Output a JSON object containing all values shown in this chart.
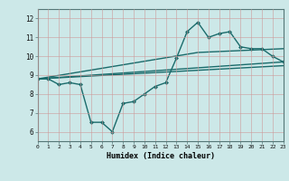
{
  "title": "",
  "xlabel": "Humidex (Indice chaleur)",
  "ylabel": "",
  "background_color": "#cce8e8",
  "line_color": "#1a6b6b",
  "xmin": 0,
  "xmax": 23,
  "ymin": 5.5,
  "ymax": 12.5,
  "yticks": [
    6,
    7,
    8,
    9,
    10,
    11,
    12
  ],
  "xticks": [
    0,
    1,
    2,
    3,
    4,
    5,
    6,
    7,
    8,
    9,
    10,
    11,
    12,
    13,
    14,
    15,
    16,
    17,
    18,
    19,
    20,
    21,
    22,
    23
  ],
  "line1_x": [
    0,
    1,
    2,
    3,
    4,
    5,
    6,
    7,
    8,
    9,
    10,
    11,
    12,
    13,
    14,
    15,
    16,
    17,
    18,
    19,
    20,
    21,
    22,
    23
  ],
  "line1_y": [
    8.8,
    8.8,
    8.5,
    8.6,
    8.5,
    6.5,
    6.5,
    6.0,
    7.5,
    7.6,
    8.0,
    8.4,
    8.6,
    9.9,
    11.3,
    11.8,
    11.0,
    11.2,
    11.3,
    10.5,
    10.4,
    10.4,
    10.0,
    9.7
  ],
  "line2_x": [
    0,
    23
  ],
  "line2_y": [
    8.8,
    9.7
  ],
  "line3_x": [
    0,
    23
  ],
  "line3_y": [
    8.8,
    9.5
  ],
  "line4_x": [
    0,
    15,
    23
  ],
  "line4_y": [
    8.8,
    10.2,
    10.4
  ],
  "grid_color": "#cc9999",
  "marker": "D",
  "markersize": 2.0,
  "linewidth": 1.0
}
